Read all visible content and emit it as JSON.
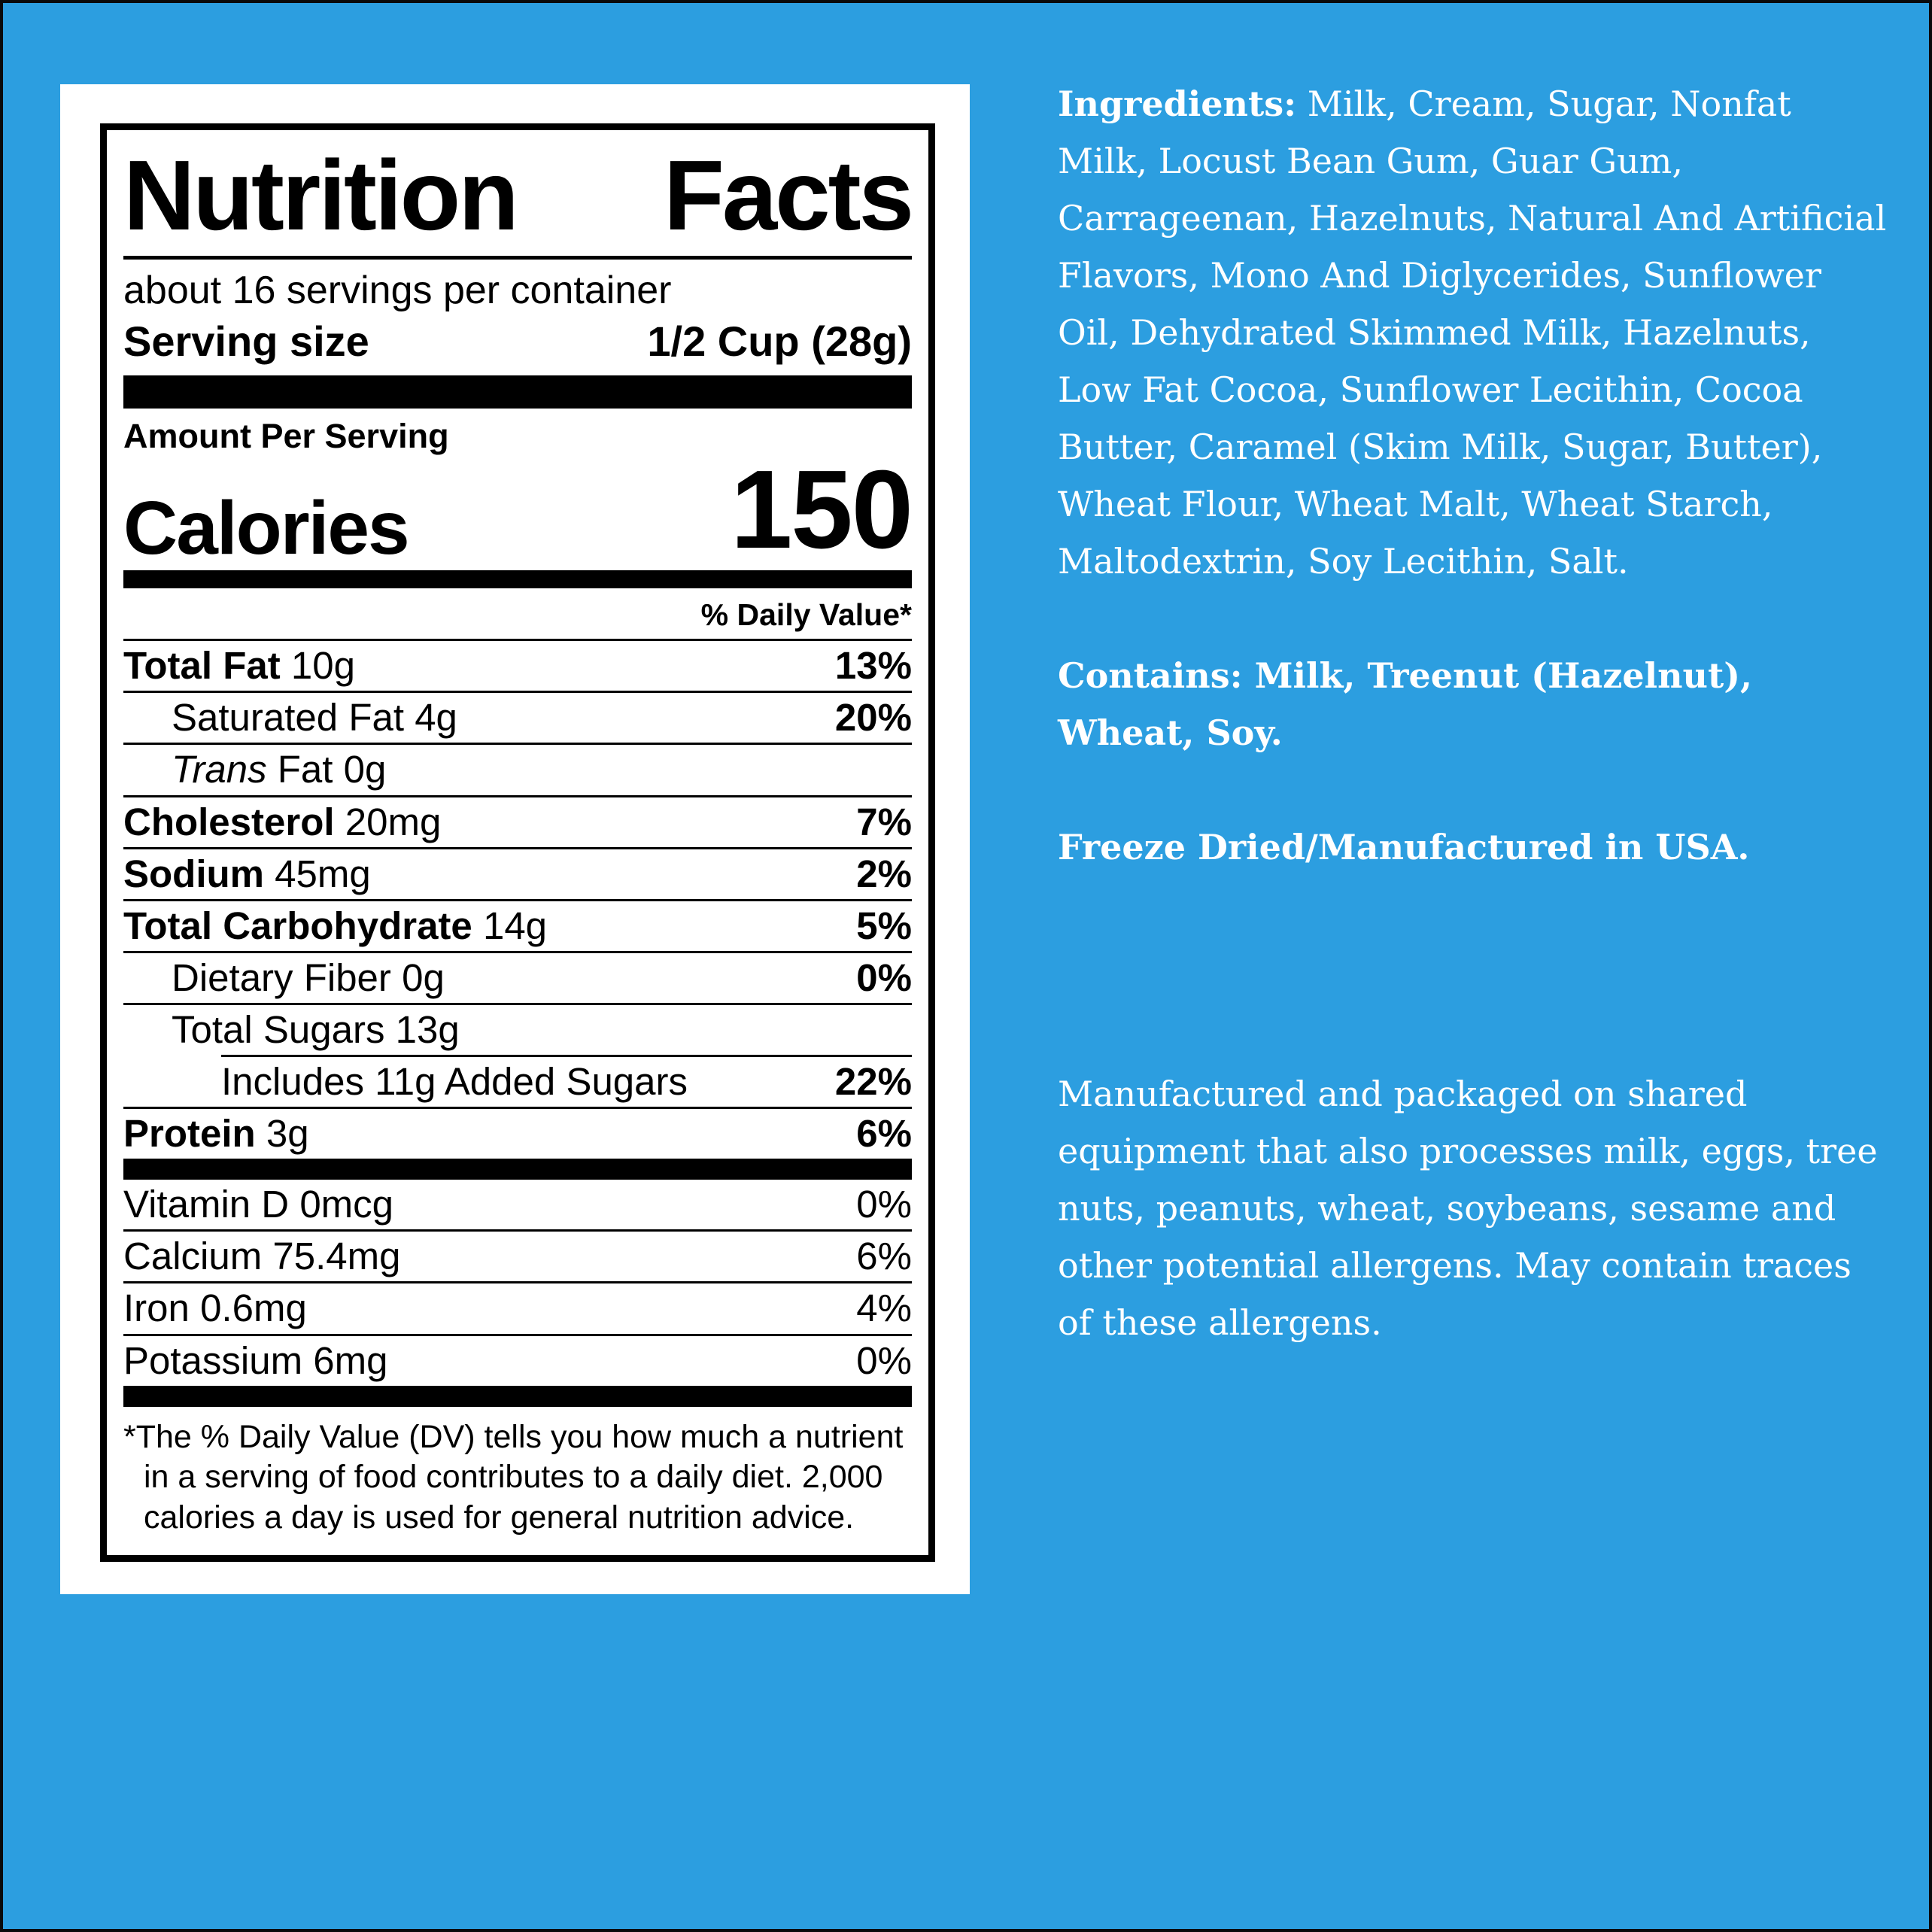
{
  "colors": {
    "background": "#2C9EE0",
    "frame": "#0A0A0A",
    "card": "#FFFFFF",
    "label_text": "#000000",
    "panel_text": "#FFFFFF"
  },
  "nutrition_label": {
    "title": "Nutrition Facts",
    "servings_per_container": "about 16 servings per container",
    "serving_size_label": "Serving size",
    "serving_size_value": "1/2 Cup (28g)",
    "amount_per_serving": "Amount Per Serving",
    "calories_label": "Calories",
    "calories_value": "150",
    "daily_value_header": "% Daily Value*",
    "rows": [
      {
        "name": "Total Fat",
        "amount": "10g",
        "dv": "13%"
      },
      {
        "name": "Saturated Fat",
        "amount": "4g",
        "dv": "20%"
      },
      {
        "name_italic": "Trans",
        "name": "Fat",
        "amount": "0g",
        "dv": ""
      },
      {
        "name": "Cholesterol",
        "amount": "20mg",
        "dv": "7%"
      },
      {
        "name": "Sodium",
        "amount": "45mg",
        "dv": "2%"
      },
      {
        "name": "Total Carbohydrate",
        "amount": "14g",
        "dv": "5%"
      },
      {
        "name": "Dietary Fiber",
        "amount": "0g",
        "dv": "0%"
      },
      {
        "name": "Total Sugars",
        "amount": "13g",
        "dv": ""
      },
      {
        "name": "Includes 11g Added Sugars",
        "amount": "",
        "dv": "22%"
      },
      {
        "name": "Protein",
        "amount": "3g",
        "dv": "6%"
      }
    ],
    "vitamins": [
      {
        "name": "Vitamin D",
        "amount": "0mcg",
        "dv": "0%"
      },
      {
        "name": "Calcium",
        "amount": "75.4mg",
        "dv": "6%"
      },
      {
        "name": "Iron",
        "amount": "0.6mg",
        "dv": "4%"
      },
      {
        "name": "Potassium",
        "amount": "6mg",
        "dv": "0%"
      }
    ],
    "footnote": "*The % Daily Value (DV) tells you how much a nutrient in a serving of food contributes to a daily diet. 2,000 calories a day is used for general nutrition advice."
  },
  "info_panel": {
    "ingredients_label": "Ingredients:",
    "ingredients_text": "Milk, Cream, Sugar, Nonfat Milk, Locust Bean Gum, Guar Gum, Carrageenan, Hazelnuts, Natural And Artificial Flavors, Mono And Diglycerides, Sunflower Oil, Dehydrated Skimmed Milk, Hazelnuts, Low Fat Cocoa, Sunflower Lecithin, Cocoa Butter, Caramel (Skim Milk, Sugar, Butter), Wheat Flour, Wheat Malt, Wheat Starch, Maltodextrin, Soy Lecithin, Salt.",
    "contains_text": "Contains: Milk, Treenut (Hazelnut), Wheat, Soy.",
    "origin_text": "Freeze Dried/Manufactured in USA.",
    "allergen_text": "Manufactured and packaged on shared equipment that also processes milk, eggs, tree nuts, peanuts, wheat, soybeans, sesame and other potential allergens. May contain traces of these allergens."
  }
}
